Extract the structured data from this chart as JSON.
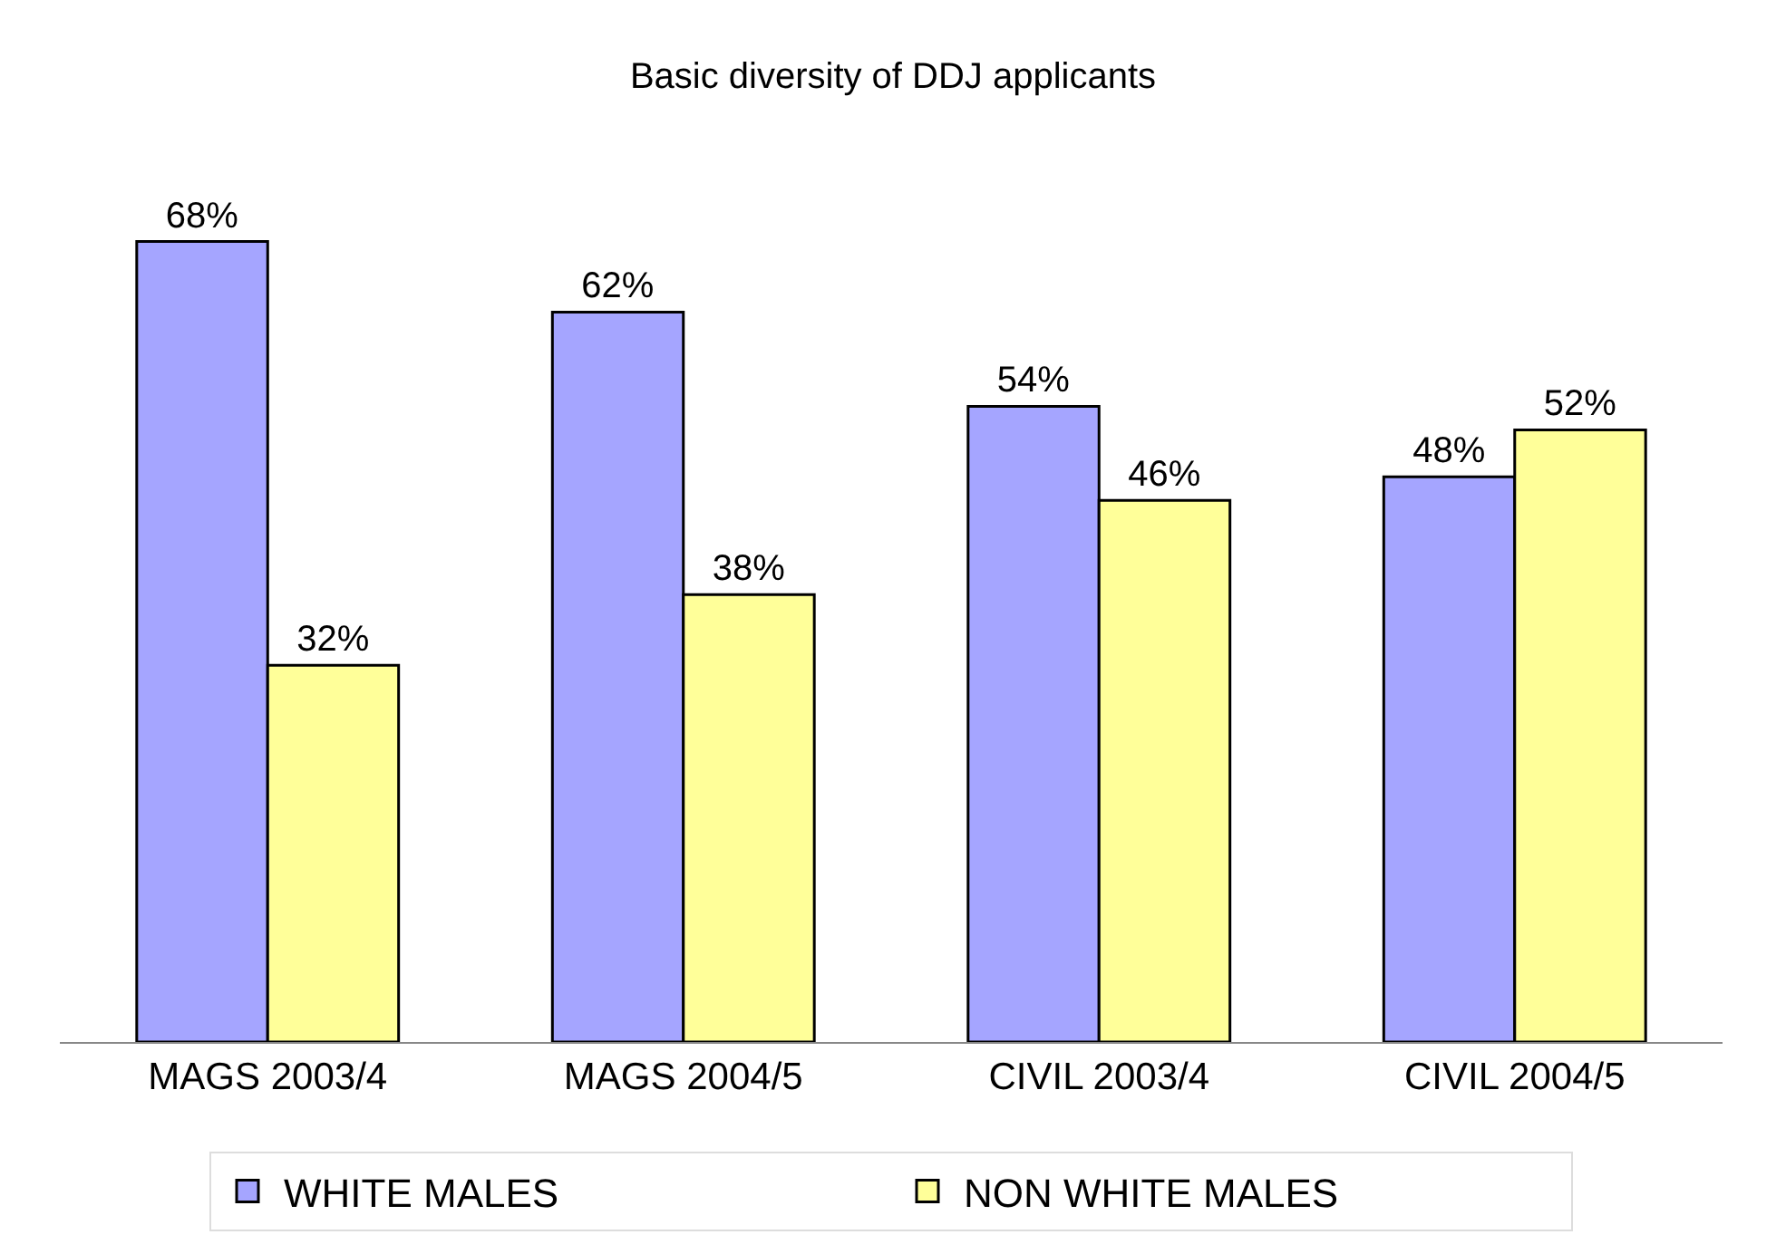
{
  "chart_data": {
    "type": "bar",
    "title": "Basic diversity of DDJ applicants",
    "categories": [
      "MAGS 2003/4",
      "MAGS 2004/5",
      "CIVIL 2003/4",
      "CIVIL 2004/5"
    ],
    "series": [
      {
        "name": "WHITE MALES",
        "color": "#a5a5ff",
        "values": [
          68,
          62,
          54,
          48
        ],
        "value_labels": [
          "68%",
          "62%",
          "54%",
          "48%"
        ]
      },
      {
        "name": "NON WHITE MALES",
        "color": "#ffff99",
        "values": [
          32,
          38,
          46,
          52
        ],
        "value_labels": [
          "32%",
          "38%",
          "46%",
          "52%"
        ]
      }
    ],
    "legend": "bottom"
  }
}
